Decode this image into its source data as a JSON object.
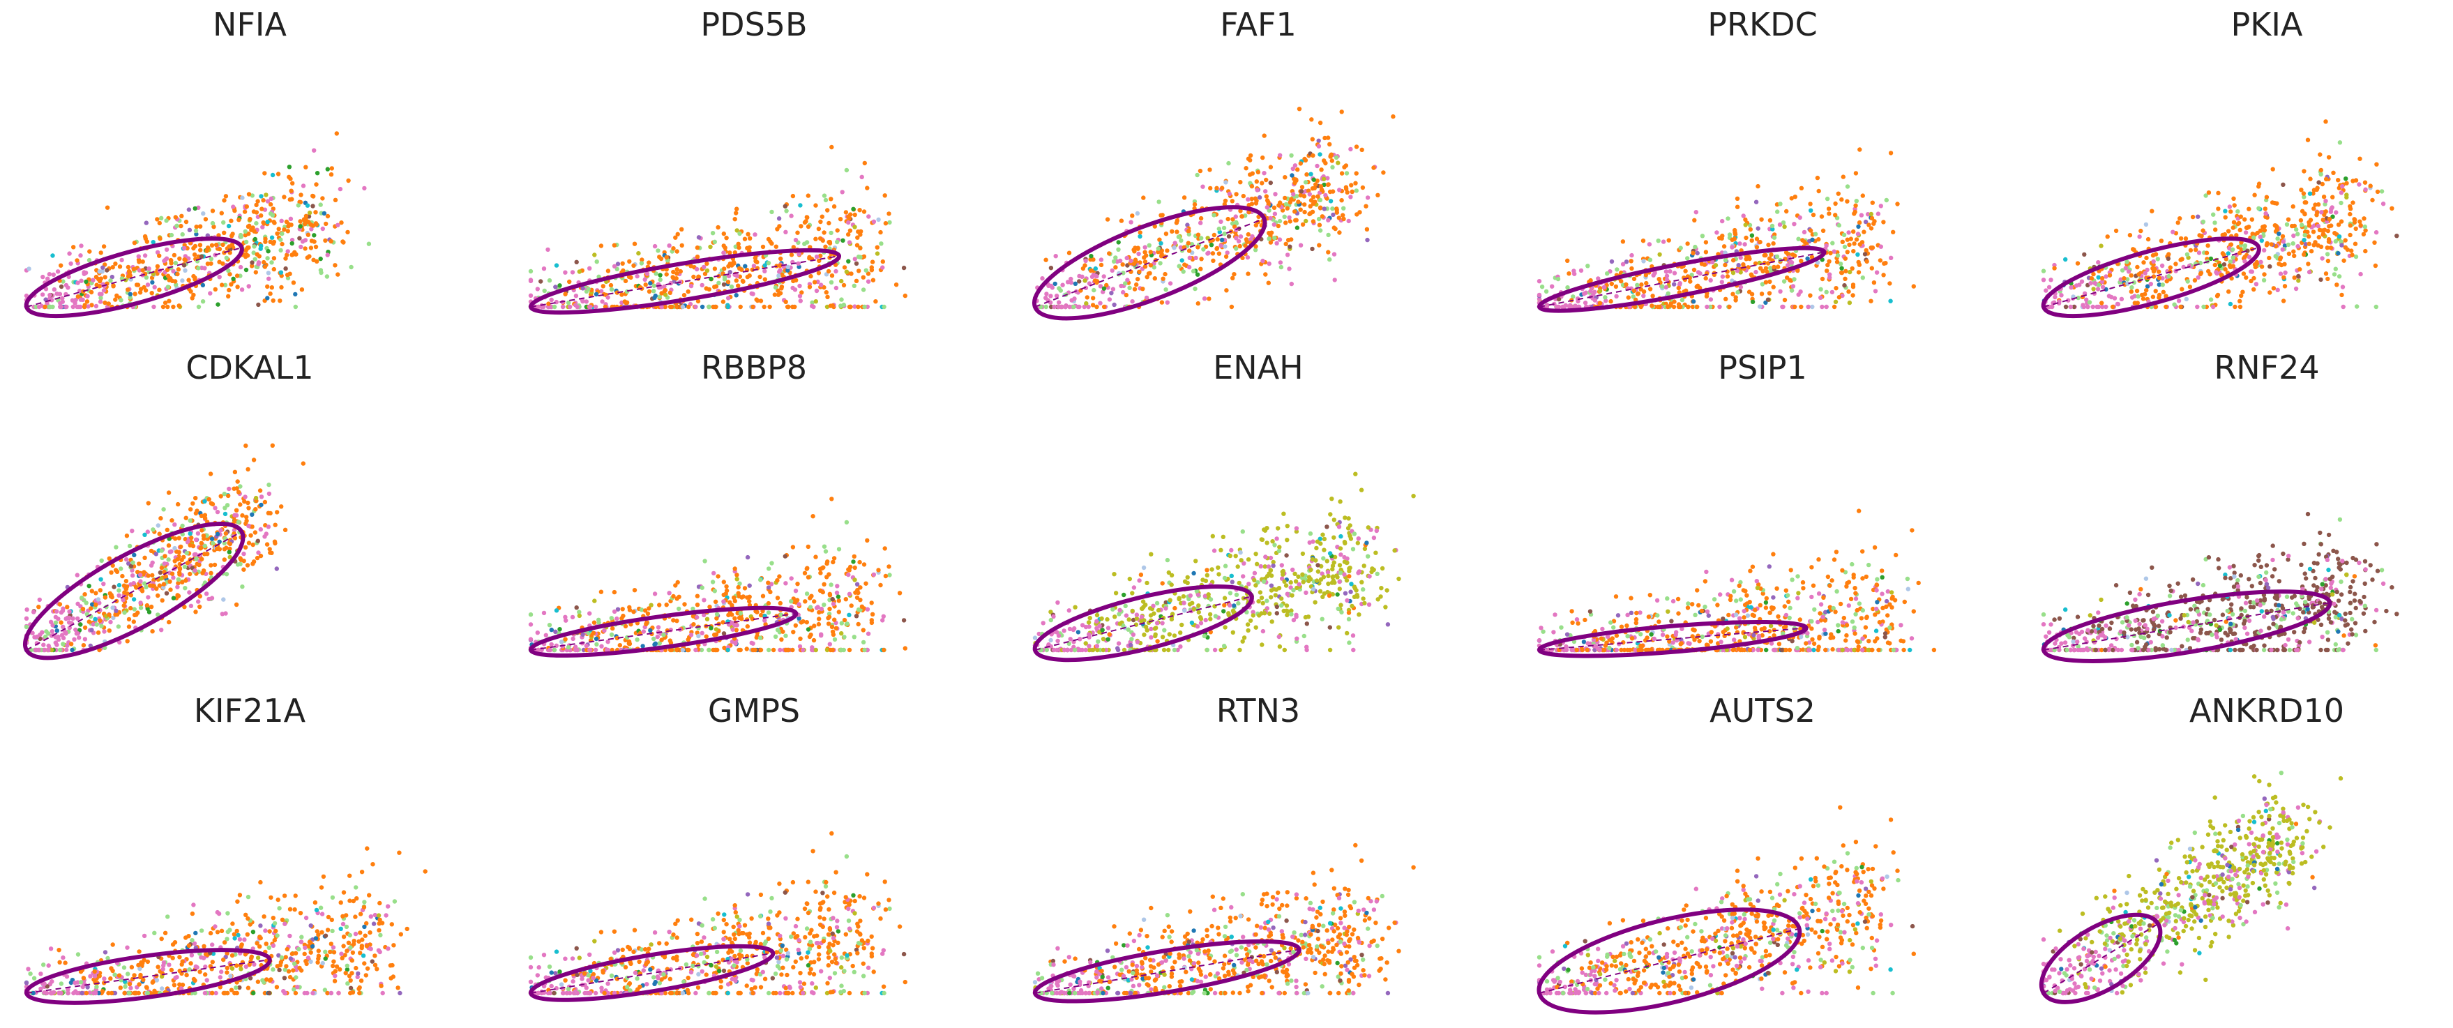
{
  "chart_data": {
    "type": "scatter",
    "layout": "grid 3 rows x 5 columns",
    "axes_visible": false,
    "grid": false,
    "legend": "none",
    "point_colors": [
      "#ff7f0e",
      "#8c564b",
      "#e377c2",
      "#98df8a",
      "#1f77b4",
      "#17becf",
      "#bcbd22",
      "#9467bd",
      "#2ca02c",
      "#aec7e8"
    ],
    "curve_color": "#800080",
    "panels": [
      {
        "title": "NFIA",
        "spread": 0.7,
        "angle": 0.5,
        "ellipse_rx": 0.5,
        "ellipse_ry": 0.1,
        "core_color": "#ff7f0e"
      },
      {
        "title": "PDS5B",
        "spread": 0.8,
        "angle": 0.3,
        "ellipse_rx": 0.7,
        "ellipse_ry": 0.07,
        "core_color": "#ff7f0e"
      },
      {
        "title": "FAF1",
        "spread": 0.75,
        "angle": 0.7,
        "ellipse_rx": 0.55,
        "ellipse_ry": 0.14,
        "core_color": "#ff7f0e"
      },
      {
        "title": "PRKDC",
        "spread": 0.8,
        "angle": 0.35,
        "ellipse_rx": 0.65,
        "ellipse_ry": 0.06,
        "core_color": "#ff7f0e"
      },
      {
        "title": "PKIA",
        "spread": 0.75,
        "angle": 0.5,
        "ellipse_rx": 0.5,
        "ellipse_ry": 0.1,
        "core_color": "#ff7f0e"
      },
      {
        "title": "CDKAL1",
        "spread": 0.55,
        "angle": 1.0,
        "ellipse_rx": 0.55,
        "ellipse_ry": 0.14,
        "core_color": "#ff7f0e"
      },
      {
        "title": "RBBP8",
        "spread": 0.8,
        "angle": 0.25,
        "ellipse_rx": 0.6,
        "ellipse_ry": 0.06,
        "core_color": "#ff7f0e"
      },
      {
        "title": "ENAH",
        "spread": 0.8,
        "angle": 0.45,
        "ellipse_rx": 0.5,
        "ellipse_ry": 0.1,
        "core_color": "#bcbd22"
      },
      {
        "title": "PSIP1",
        "spread": 0.85,
        "angle": 0.15,
        "ellipse_rx": 0.6,
        "ellipse_ry": 0.05,
        "core_color": "#ff7f0e"
      },
      {
        "title": "RNF24",
        "spread": 0.75,
        "angle": 0.3,
        "ellipse_rx": 0.65,
        "ellipse_ry": 0.1,
        "core_color": "#8c564b"
      },
      {
        "title": "KIF21A",
        "spread": 0.85,
        "angle": 0.25,
        "ellipse_rx": 0.55,
        "ellipse_ry": 0.08,
        "core_color": "#ff7f0e"
      },
      {
        "title": "GMPS",
        "spread": 0.8,
        "angle": 0.3,
        "ellipse_rx": 0.55,
        "ellipse_ry": 0.07,
        "core_color": "#ff7f0e"
      },
      {
        "title": "RTN3",
        "spread": 0.8,
        "angle": 0.3,
        "ellipse_rx": 0.6,
        "ellipse_ry": 0.08,
        "core_color": "#ff7f0e"
      },
      {
        "title": "AUTS2",
        "spread": 0.8,
        "angle": 0.45,
        "ellipse_rx": 0.6,
        "ellipse_ry": 0.16,
        "core_color": "#ff7f0e"
      },
      {
        "title": "ANKRD10",
        "spread": 0.6,
        "angle": 1.1,
        "ellipse_rx": 0.3,
        "ellipse_ry": 0.12,
        "core_color": "#bcbd22"
      }
    ]
  }
}
